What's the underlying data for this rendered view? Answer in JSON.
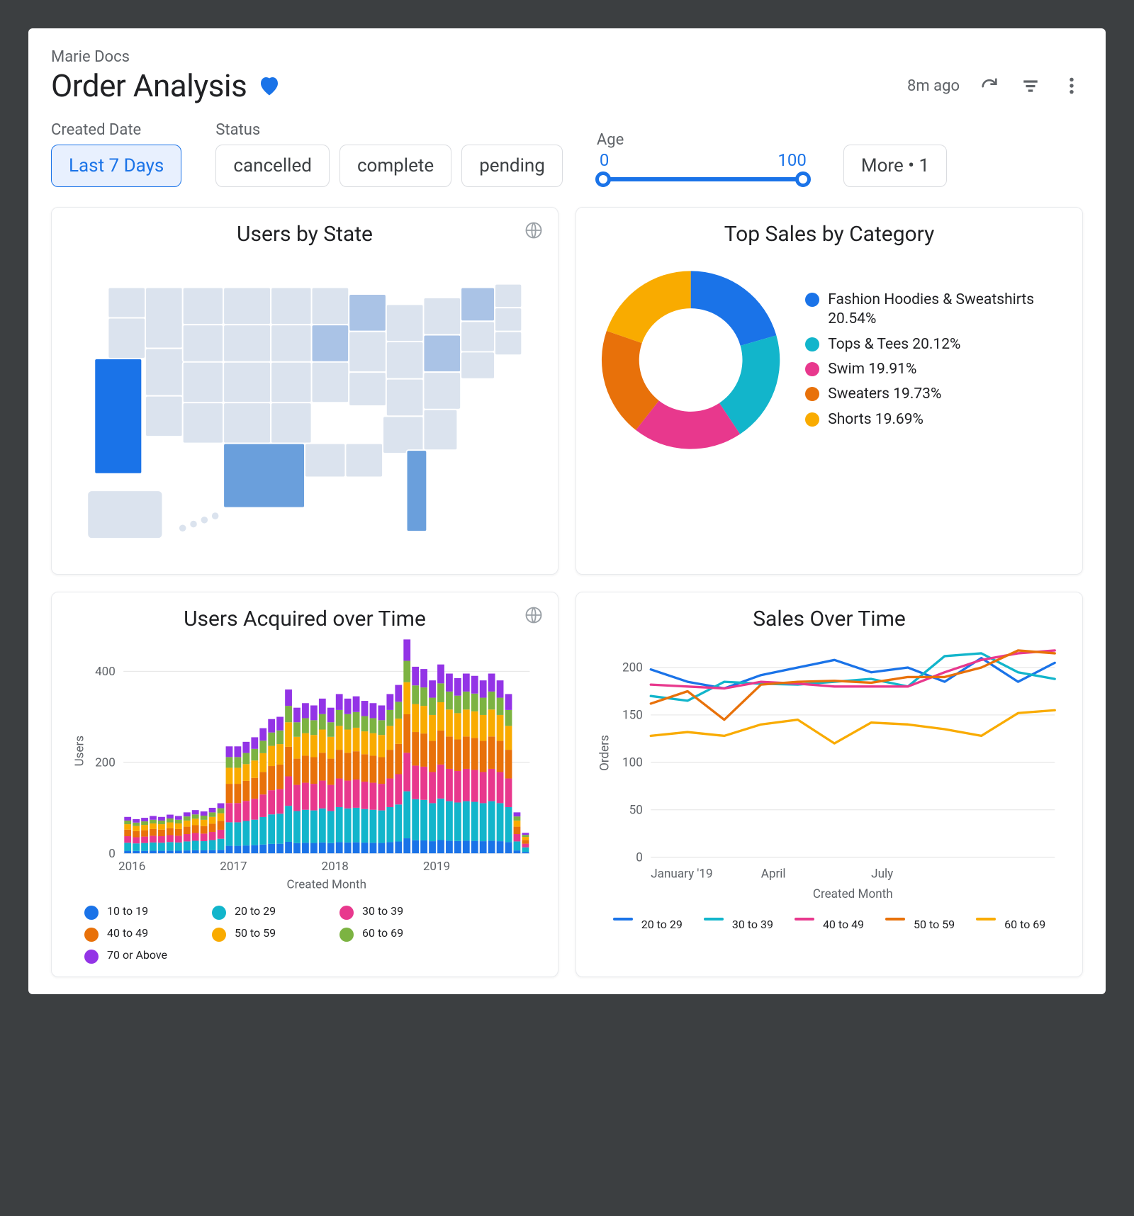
{
  "breadcrumb": "Marie Docs",
  "title": "Order Analysis",
  "favorite_color": "#1a73e8",
  "timestamp": "8m ago",
  "icon_color": "#5f6368",
  "filters": {
    "created_date": {
      "label": "Created Date",
      "chip": "Last 7 Days",
      "active": true
    },
    "status": {
      "label": "Status",
      "chips": [
        "cancelled",
        "complete",
        "pending"
      ]
    },
    "age": {
      "label": "Age",
      "min": 0,
      "max": 100,
      "track_color": "#1a73e8"
    },
    "more": {
      "label": "More • 1"
    }
  },
  "map_card": {
    "title": "Users by State",
    "state_shade_light": "#dbe3ee",
    "state_shade_mid": "#aac3e6",
    "state_shade_dark": "#6a9fdc",
    "state_shade_full": "#1a73e8"
  },
  "donut": {
    "title": "Top Sales by Category",
    "type": "donut",
    "inner_radius_ratio": 0.58,
    "slices": [
      {
        "label": "Fashion Hoodies & Sweatshirts",
        "value": 20.54,
        "color": "#1a73e8"
      },
      {
        "label": "Tops & Tees",
        "value": 20.12,
        "color": "#12b5cb"
      },
      {
        "label": "Swim",
        "value": 19.91,
        "color": "#e8388d"
      },
      {
        "label": "Sweaters",
        "value": 19.73,
        "color": "#e8710a"
      },
      {
        "label": "Shorts",
        "value": 19.69,
        "color": "#f9ab00"
      }
    ]
  },
  "stacked": {
    "title": "Users Acquired over Time",
    "type": "stacked-bar",
    "xlabel": "Created Month",
    "ylabel": "Users",
    "ylim": [
      0,
      450
    ],
    "yticks": [
      0,
      200,
      400
    ],
    "xticks": [
      "2016",
      "2017",
      "2018",
      "2019"
    ],
    "grid_color": "#e0e0e0",
    "series": [
      {
        "label": "10 to 19",
        "color": "#1a73e8"
      },
      {
        "label": "20 to 29",
        "color": "#12b5cb"
      },
      {
        "label": "30 to 39",
        "color": "#e8388d"
      },
      {
        "label": "40 to 49",
        "color": "#e8710a"
      },
      {
        "label": "50 to 59",
        "color": "#f9ab00"
      },
      {
        "label": "60 to 69",
        "color": "#7cb342"
      },
      {
        "label": "70 or Above",
        "color": "#9334e6"
      }
    ],
    "totals": [
      80,
      75,
      78,
      82,
      80,
      85,
      82,
      90,
      95,
      92,
      100,
      110,
      235,
      235,
      245,
      255,
      275,
      295,
      300,
      360,
      320,
      330,
      325,
      340,
      320,
      350,
      340,
      345,
      335,
      330,
      325,
      350,
      370,
      470,
      410,
      405,
      380,
      415,
      395,
      385,
      395,
      390,
      380,
      395,
      380,
      350,
      90,
      45
    ]
  },
  "lines": {
    "title": "Sales Over Time",
    "type": "line",
    "xlabel": "Created Month",
    "ylabel": "Orders",
    "ylim": [
      0,
      220
    ],
    "yticks": [
      0,
      50,
      100,
      150,
      200
    ],
    "xticks": [
      "January '19",
      "April",
      "July"
    ],
    "grid_color": "#e0e0e0",
    "series": [
      {
        "label": "20 to 29",
        "color": "#1a73e8",
        "points": [
          198,
          185,
          178,
          192,
          200,
          208,
          195,
          200,
          185,
          210,
          185,
          205
        ]
      },
      {
        "label": "30 to 39",
        "color": "#12b5cb",
        "points": [
          170,
          165,
          185,
          183,
          182,
          185,
          188,
          180,
          212,
          215,
          195,
          188
        ]
      },
      {
        "label": "40 to 49",
        "color": "#e8388d",
        "points": [
          182,
          180,
          178,
          185,
          183,
          180,
          180,
          180,
          195,
          208,
          215,
          218
        ]
      },
      {
        "label": "50 to 59",
        "color": "#e8710a",
        "points": [
          162,
          175,
          145,
          182,
          185,
          186,
          184,
          190,
          190,
          200,
          218,
          215
        ]
      },
      {
        "label": "60 to 69",
        "color": "#f9ab00",
        "points": [
          128,
          132,
          128,
          140,
          145,
          120,
          142,
          140,
          135,
          128,
          152,
          155
        ]
      }
    ]
  }
}
